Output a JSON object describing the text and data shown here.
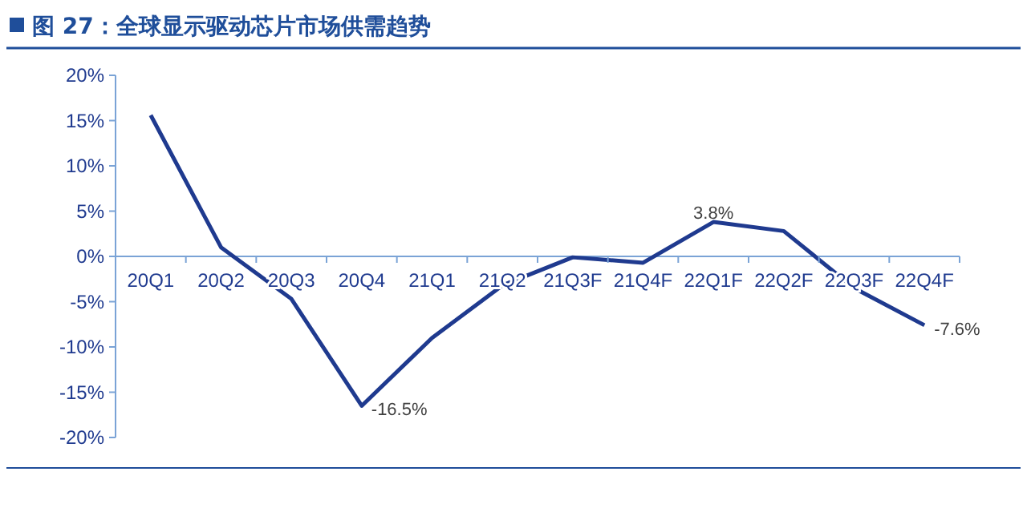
{
  "chart_data": {
    "type": "line",
    "title": "图 27：全球显示驱动芯片市场供需趋势",
    "categories": [
      "20Q1",
      "20Q2",
      "20Q3",
      "20Q4",
      "21Q1",
      "21Q2",
      "21Q3F",
      "21Q4F",
      "22Q1F",
      "22Q2F",
      "22Q3F",
      "22Q4F"
    ],
    "series": [
      {
        "color": "#1f3a8f",
        "values": [
          15.6,
          1.0,
          -4.7,
          -16.5,
          -9.0,
          -3.2,
          -0.1,
          -0.7,
          3.8,
          2.8,
          -3.5,
          -7.6
        ],
        "value_labels": [
          null,
          null,
          null,
          "-16.5%",
          null,
          null,
          null,
          null,
          "3.8%",
          null,
          null,
          "-7.6%"
        ]
      }
    ],
    "ylim": [
      -20,
      20
    ],
    "yticks": [
      {
        "value": -20,
        "label": "-20%"
      },
      {
        "value": -15,
        "label": "-15%"
      },
      {
        "value": -10,
        "label": "-10%"
      },
      {
        "value": -5,
        "label": "-5%"
      },
      {
        "value": 0,
        "label": "0%"
      },
      {
        "value": 5,
        "label": "5%"
      },
      {
        "value": 10,
        "label": "10%"
      },
      {
        "value": 15,
        "label": "15%"
      },
      {
        "value": 20,
        "label": "20%"
      }
    ],
    "grid": false,
    "marker": "none",
    "line_style": "solid"
  }
}
